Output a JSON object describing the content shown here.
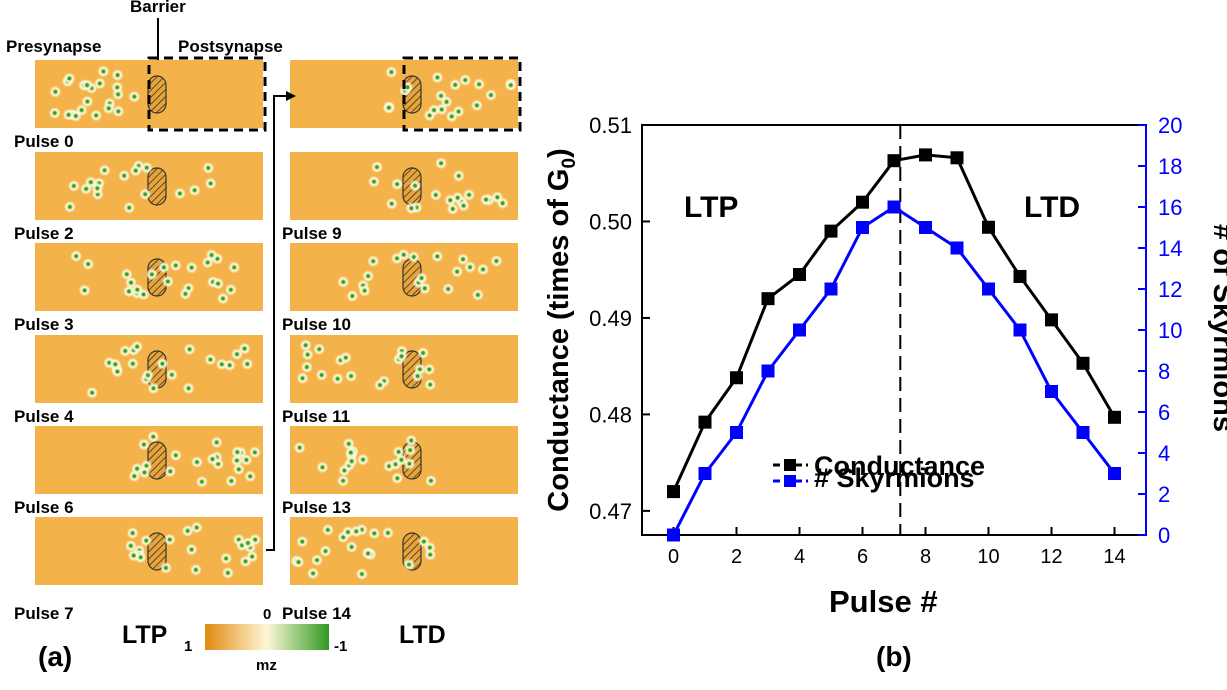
{
  "panel_a": {
    "barrier_label": "Barrier",
    "presynapse_label": "Presynapse",
    "postsynapse_label": "Postsynapse",
    "ltp_pulses": [
      "Pulse 0",
      "Pulse 2",
      "Pulse 3",
      "Pulse 4",
      "Pulse 6",
      "Pulse 7"
    ],
    "ltd_pulses": [
      "Pulse 9",
      "Pulse 10",
      "Pulse 11",
      "Pulse 13",
      "Pulse 14"
    ],
    "ltp_label": "LTP",
    "ltd_label": "LTD",
    "colorbar": {
      "min_label": "1",
      "mid_label": "0",
      "max_label": "-1",
      "axis_label": "mz",
      "colors": [
        "#e08a10",
        "#fff7d8",
        "#2e9a20"
      ]
    },
    "panel_label": "(a)",
    "colors": {
      "strip": "#f3b34a",
      "skyrmion_core": "#3a9a2a",
      "skyrmion_halo": "#fffbe0"
    }
  },
  "panel_b": {
    "panel_label": "(b)"
  },
  "chart_data": {
    "type": "line",
    "x": [
      0,
      1,
      2,
      3,
      4,
      5,
      6,
      7,
      8,
      9,
      10,
      11,
      12,
      13,
      14
    ],
    "xlabel": "Pulse #",
    "ylabel_prefix": "Conductance (times of G",
    "ylabel_subscript": "0",
    "ylabel_suffix": ")",
    "y2label": "# of Skyrmions",
    "xlim": [
      -1,
      15
    ],
    "ylim": [
      0.4675,
      0.51
    ],
    "y2lim": [
      0,
      20
    ],
    "xticks": [
      0,
      2,
      4,
      6,
      8,
      10,
      12,
      14
    ],
    "yticks": [
      0.47,
      0.48,
      0.49,
      0.5,
      0.51
    ],
    "ytick_labels": [
      "0.47",
      "0.48",
      "0.49",
      "0.50",
      "0.51"
    ],
    "y2ticks": [
      0,
      2,
      4,
      6,
      8,
      10,
      12,
      14,
      16,
      18,
      20
    ],
    "vline_x": 7.2,
    "annotations": [
      {
        "text": "LTP",
        "side": "left"
      },
      {
        "text": "LTD",
        "side": "right"
      }
    ],
    "series": [
      {
        "name": "Conductance",
        "axis": "left",
        "color": "#000000",
        "values": [
          0.472,
          0.4792,
          0.4838,
          0.492,
          0.4945,
          0.499,
          0.502,
          0.5063,
          0.5069,
          0.5066,
          0.4994,
          0.4943,
          0.4898,
          0.4853,
          0.4797
        ]
      },
      {
        "name": "# Skyrmions",
        "axis": "right",
        "color": "#0000ff",
        "values": [
          0,
          3,
          5,
          8,
          10,
          12,
          15,
          16,
          15,
          14,
          12,
          10,
          7,
          5,
          3
        ]
      }
    ]
  }
}
